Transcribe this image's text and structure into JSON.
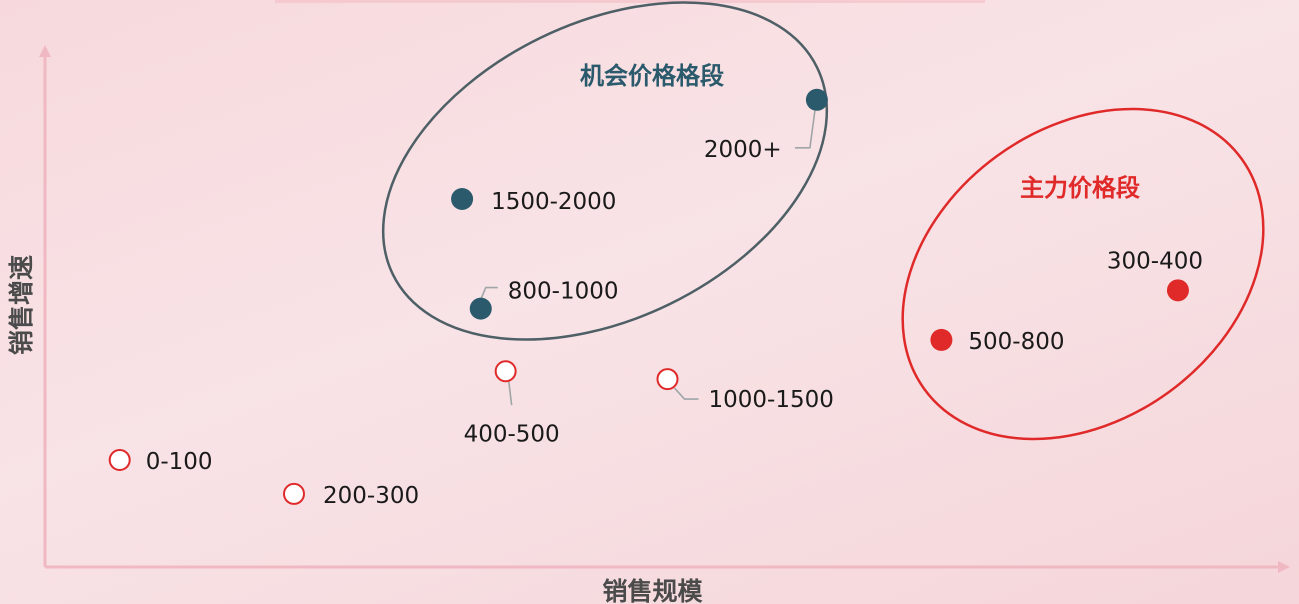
{
  "colors": {
    "axis": "#f0b8c2",
    "opportunity": "#2a5a6b",
    "main": "#e02a2a",
    "outline_dark": "#4e5f66",
    "label_text": "#1a1a1a",
    "leader": "#9fa6a8",
    "axis_label": "#4b4b4b"
  },
  "chart_data": {
    "type": "scatter",
    "xlabel": "销售规模",
    "ylabel": "销售增速",
    "x_range": [
      0,
      1
    ],
    "y_range": [
      0,
      1
    ],
    "grid": false,
    "groups": [
      {
        "name": "机会价格格段",
        "color": "#2a5a6b",
        "outline": "#4e5f66"
      },
      {
        "name": "主力价格段",
        "color": "#e02a2a",
        "outline": "#e02a2a"
      }
    ],
    "points": [
      {
        "label": "0-100",
        "x": 0.06,
        "y": 0.205,
        "style": "hollow"
      },
      {
        "label": "200-300",
        "x": 0.2,
        "y": 0.14,
        "style": "hollow"
      },
      {
        "label": "400-500",
        "x": 0.37,
        "y": 0.375,
        "style": "hollow"
      },
      {
        "label": "1000-1500",
        "x": 0.5,
        "y": 0.36,
        "style": "hollow"
      },
      {
        "label": "800-1000",
        "x": 0.35,
        "y": 0.495,
        "style": "opportunity"
      },
      {
        "label": "1500-2000",
        "x": 0.335,
        "y": 0.705,
        "style": "opportunity"
      },
      {
        "label": "2000+",
        "x": 0.62,
        "y": 0.895,
        "style": "opportunity"
      },
      {
        "label": "500-800",
        "x": 0.72,
        "y": 0.435,
        "style": "main"
      },
      {
        "label": "300-400",
        "x": 0.91,
        "y": 0.53,
        "style": "main"
      }
    ]
  }
}
